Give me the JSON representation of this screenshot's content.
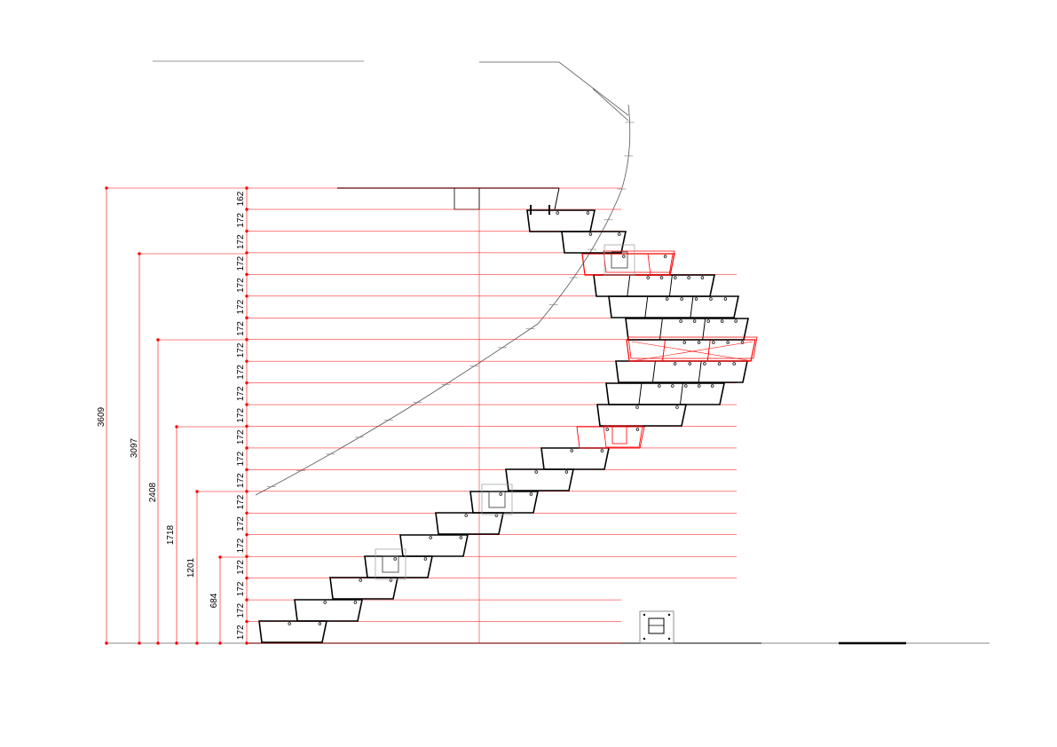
{
  "colors": {
    "dimension": "#ff0000",
    "linework": "#000000",
    "handrail": "#555555",
    "highlight_tread": "#ff3333"
  },
  "overall_dimensions": [
    "3609",
    "3097",
    "2408",
    "1718",
    "1201",
    "684"
  ],
  "riser_dimensions": [
    "172",
    "172",
    "172",
    "172",
    "172",
    "172",
    "172",
    "172",
    "172",
    "172",
    "172",
    "172",
    "172",
    "172",
    "172",
    "172",
    "172",
    "172",
    "172",
    "172",
    "162"
  ]
}
